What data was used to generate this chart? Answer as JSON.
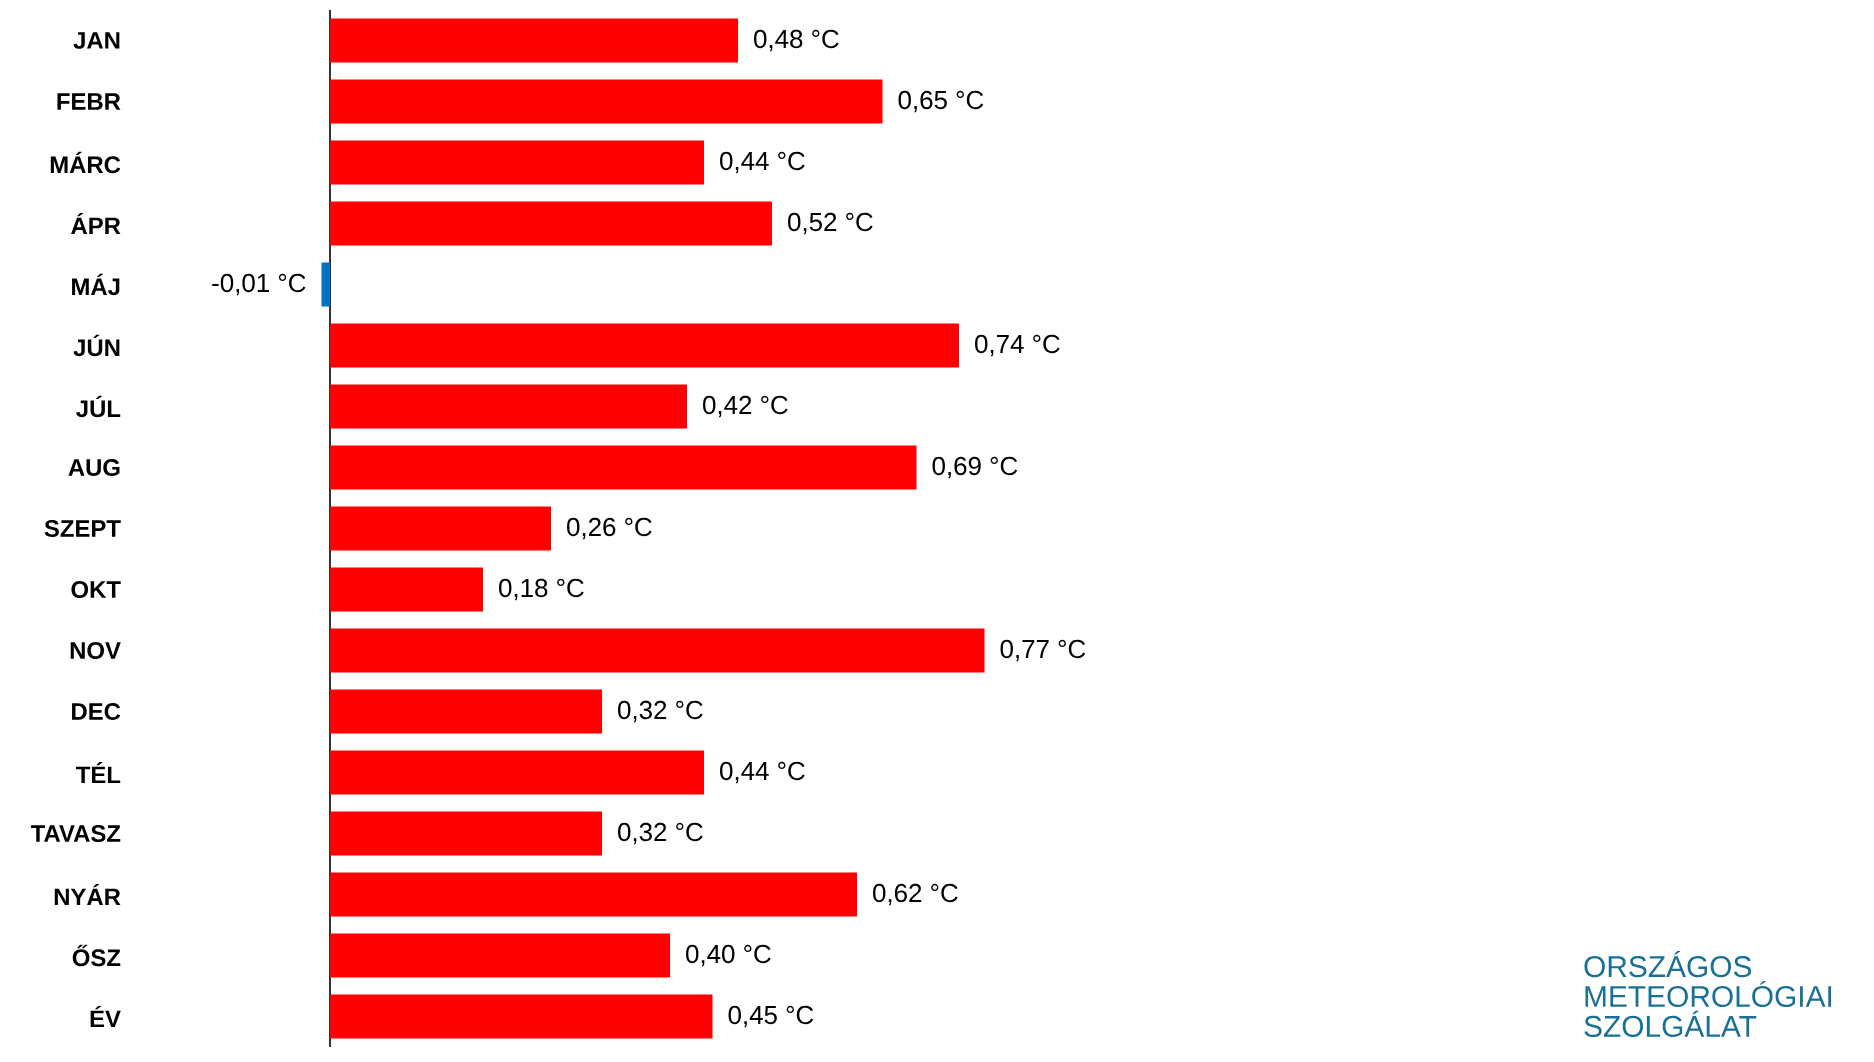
{
  "chart_data": {
    "type": "bar",
    "orientation": "horizontal",
    "categories": [
      "JAN",
      "FEBR",
      "MÁRC",
      "ÁPR",
      "MÁJ",
      "JÚN",
      "JÚL",
      "AUG",
      "SZEPT",
      "OKT",
      "NOV",
      "DEC",
      "TÉL",
      "TAVASZ",
      "NYÁR",
      "ŐSZ",
      "ÉV"
    ],
    "values": [
      0.48,
      0.65,
      0.44,
      0.52,
      -0.01,
      0.74,
      0.42,
      0.69,
      0.26,
      0.18,
      0.77,
      0.32,
      0.44,
      0.32,
      0.62,
      0.4,
      0.45
    ],
    "colors": [
      "#ff0000",
      "#ff0000",
      "#ff0000",
      "#ff0000",
      "#0070c0",
      "#ff0000",
      "#ff0000",
      "#ff0000",
      "#ff0000",
      "#ff0000",
      "#ff0000",
      "#ff0000",
      "#ff0000",
      "#ff0000",
      "#ff0000",
      "#ff0000",
      "#ff0000"
    ],
    "value_labels": [
      "0,48 °C",
      "0,65 °C",
      "0,44 °C",
      "0,52 °C",
      "-0,01 °C",
      "0,74 °C",
      "0,42 °C",
      "0,69 °C",
      "0,26 °C",
      "0,18 °C",
      "0,77 °C",
      "0,32 °C",
      "0,44 °C",
      "0,32 °C",
      "0,62 °C",
      "0,40 °C",
      "0,45 °C"
    ],
    "annotations": [
      "ORSZÁGOS METEOROLÓGIAI SZOLGÁLAT"
    ]
  }
}
